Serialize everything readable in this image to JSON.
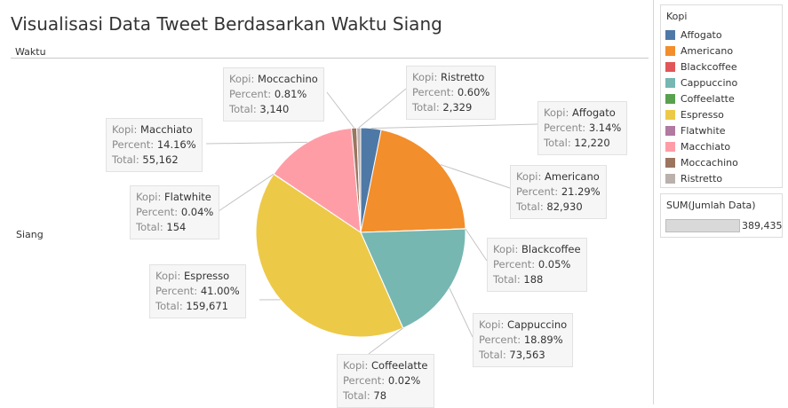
{
  "title": "Visualisasi Data Tweet Berdasarkan Waktu Siang",
  "column_header": "Waktu",
  "row_label": "Siang",
  "tooltip_keys": {
    "category": "Kopi:",
    "percent": "Percent:",
    "total": "Total:"
  },
  "legend": {
    "title": "Kopi",
    "items": [
      {
        "label": "Affogato",
        "color": "#4e79a7"
      },
      {
        "label": "Americano",
        "color": "#f28e2b"
      },
      {
        "label": "Blackcoffee",
        "color": "#e15759"
      },
      {
        "label": "Cappuccino",
        "color": "#76b7b2"
      },
      {
        "label": "Coffeelatte",
        "color": "#59a14f"
      },
      {
        "label": "Espresso",
        "color": "#edc948"
      },
      {
        "label": "Flatwhite",
        "color": "#b07aa1"
      },
      {
        "label": "Macchiato",
        "color": "#ff9da7"
      },
      {
        "label": "Moccachino",
        "color": "#9c755f"
      },
      {
        "label": "Ristretto",
        "color": "#bab0ac"
      }
    ]
  },
  "size_legend": {
    "title": "SUM(Jumlah Data)",
    "value": "389,435"
  },
  "chart_data": {
    "type": "pie",
    "title": "Visualisasi Data Tweet Berdasarkan Waktu Siang",
    "slices": [
      {
        "label": "Affogato",
        "percent": "3.14%",
        "total": 12220,
        "total_text": "12,220",
        "color": "#4e79a7"
      },
      {
        "label": "Americano",
        "percent": "21.29%",
        "total": 82930,
        "total_text": "82,930",
        "color": "#f28e2b"
      },
      {
        "label": "Blackcoffee",
        "percent": "0.05%",
        "total": 188,
        "total_text": "188",
        "color": "#e15759"
      },
      {
        "label": "Cappuccino",
        "percent": "18.89%",
        "total": 73563,
        "total_text": "73,563",
        "color": "#76b7b2"
      },
      {
        "label": "Coffeelatte",
        "percent": "0.02%",
        "total": 78,
        "total_text": "78",
        "color": "#59a14f"
      },
      {
        "label": "Espresso",
        "percent": "41.00%",
        "total": 159671,
        "total_text": "159,671",
        "color": "#edc948"
      },
      {
        "label": "Flatwhite",
        "percent": "0.04%",
        "total": 154,
        "total_text": "154",
        "color": "#b07aa1"
      },
      {
        "label": "Macchiato",
        "percent": "14.16%",
        "total": 55162,
        "total_text": "55,162",
        "color": "#ff9da7"
      },
      {
        "label": "Moccachino",
        "percent": "0.81%",
        "total": 3140,
        "total_text": "3,140",
        "color": "#9c755f"
      },
      {
        "label": "Ristretto",
        "percent": "0.60%",
        "total": 2329,
        "total_text": "2,329",
        "color": "#bab0ac"
      }
    ]
  }
}
